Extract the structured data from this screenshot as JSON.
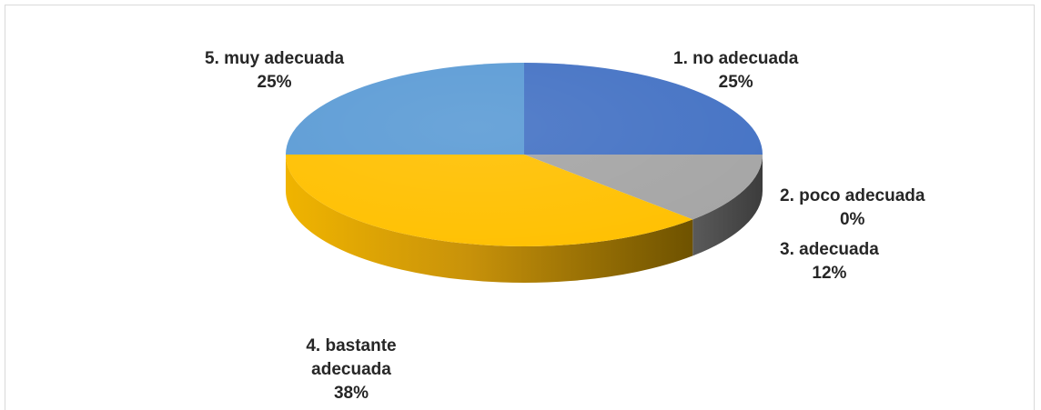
{
  "chart_data": {
    "type": "pie",
    "style": "3d",
    "legend": "none",
    "start_angle_deg": 0,
    "direction": "clockwise",
    "slices": [
      {
        "category": "1. no adecuada",
        "value": 25,
        "label": "25%",
        "color": "#4472C4",
        "side_color": "#2F528F"
      },
      {
        "category": "2. poco adecuada",
        "value": 0,
        "label": "0%",
        "color": "#ED7D31",
        "side_color": "#AE5A21"
      },
      {
        "category": "3. adecuada",
        "value": 12.5,
        "label": "12%",
        "color": "#A5A5A5",
        "side_color": "#4A4A4A"
      },
      {
        "category": "4. bastante adecuada",
        "value": 37.5,
        "label": "38%",
        "color": "#FFC000",
        "side_color": "#B8860B"
      },
      {
        "category": "5. muy adecuada",
        "value": 25,
        "label": "25%",
        "color": "#5B9BD5",
        "side_color": "#3A6FA0"
      }
    ]
  }
}
